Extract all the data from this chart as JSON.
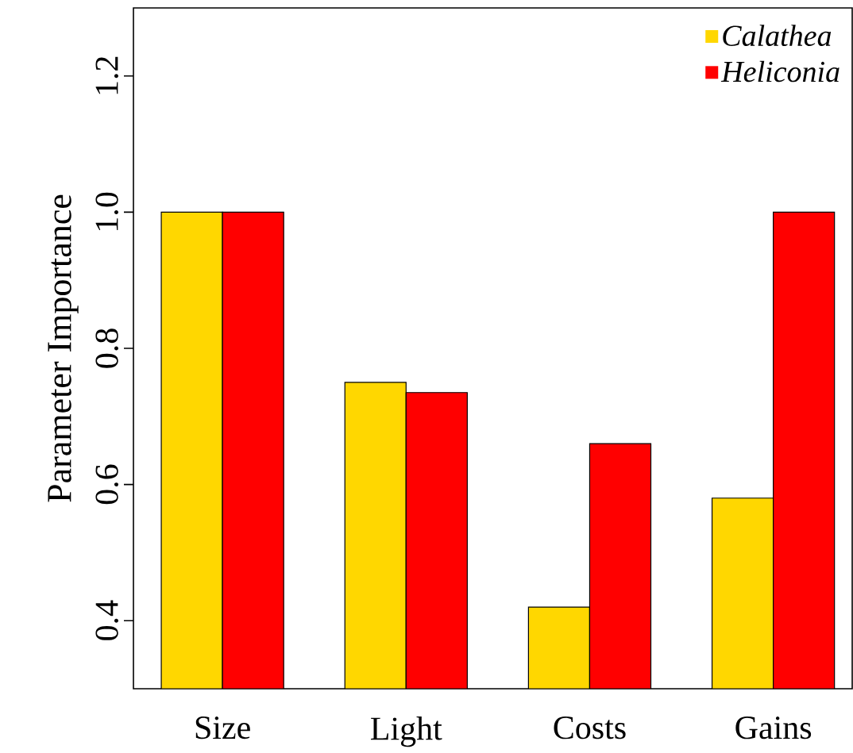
{
  "chart_data": {
    "type": "bar",
    "ylabel": "Parameter Importance",
    "categories": [
      "Size",
      "Light",
      "Costs",
      "Gains"
    ],
    "series": [
      {
        "name": "Calathea",
        "color": "#ffd700",
        "values": [
          1.0,
          0.75,
          0.42,
          0.58
        ]
      },
      {
        "name": "Heliconia",
        "color": "#ff0000",
        "values": [
          1.0,
          0.735,
          0.66,
          1.0
        ]
      }
    ],
    "ylim": [
      0.3,
      1.3
    ],
    "yticks": [
      0.4,
      0.6,
      0.8,
      {
        "value": 1,
        "label": "1.0"
      },
      1.2
    ],
    "legend": "top right"
  }
}
